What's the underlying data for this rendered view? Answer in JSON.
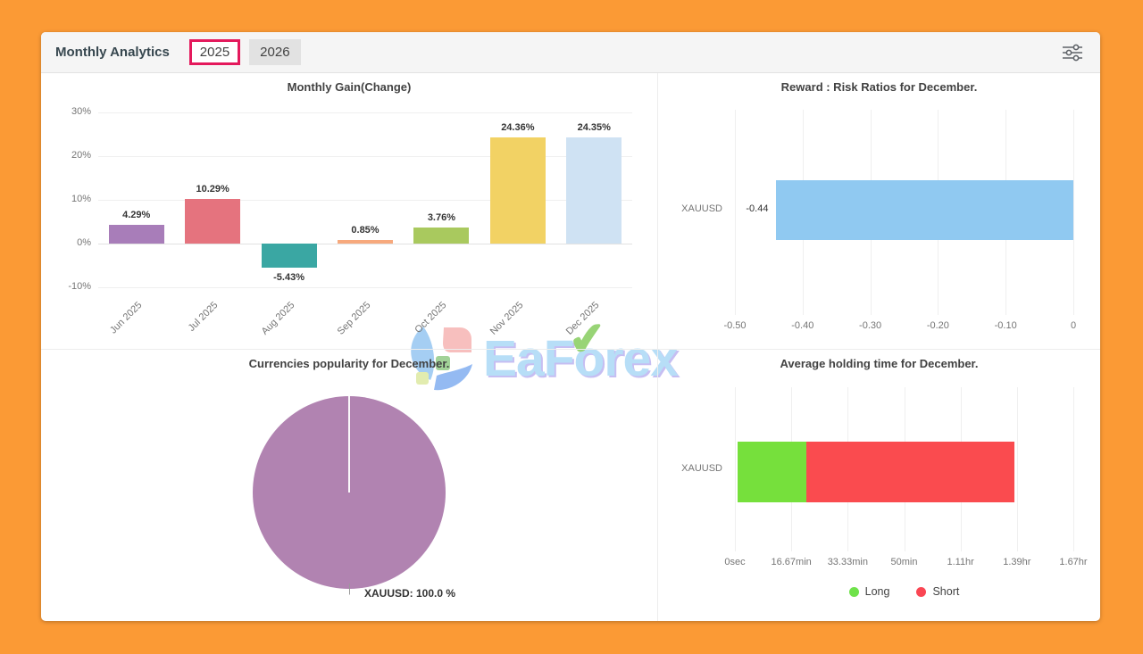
{
  "header": {
    "title": "Monthly Analytics",
    "tabs": [
      {
        "label": "2025",
        "selected": true
      },
      {
        "label": "2026",
        "selected": false
      }
    ]
  },
  "watermark": {
    "brand_left": "EaF",
    "brand_o": "o",
    "brand_right": "rex",
    "check_glyph": "✔"
  },
  "colors": {
    "background": "#fb9a35",
    "card": "#ffffff",
    "header_bg": "#f5f5f5",
    "tab_active_border": "#e4195c",
    "tab_inactive_bg": "#e2e2e2",
    "grid_line": "#efefef",
    "axis_text": "#757575"
  },
  "chart_data": [
    {
      "type": "bar",
      "title": "Monthly Gain(Change)",
      "categories": [
        "Jun 2025",
        "Jul 2025",
        "Aug 2025",
        "Sep 2025",
        "Oct 2025",
        "Nov 2025",
        "Dec 2025"
      ],
      "values": [
        4.29,
        10.29,
        -5.43,
        0.85,
        3.76,
        24.36,
        24.35
      ],
      "value_labels": [
        "4.29%",
        "10.29%",
        "-5.43%",
        "0.85%",
        "3.76%",
        "24.36%",
        "24.35%"
      ],
      "bar_colors": [
        "#a87db9",
        "#e5737e",
        "#3aa7a3",
        "#f7a97d",
        "#a9c95e",
        "#f2d264",
        "#cfe2f3"
      ],
      "ylim": [
        -10,
        30
      ],
      "yticks": [
        30,
        20,
        10,
        0,
        -10
      ],
      "ytick_labels": [
        "30%",
        "20%",
        "10%",
        "0%",
        "-10%"
      ],
      "grid": true
    },
    {
      "type": "hbar",
      "title": "Reward : Risk Ratios for December.",
      "categories": [
        "XAUUSD"
      ],
      "values": [
        -0.44
      ],
      "value_labels": [
        "-0.44"
      ],
      "bar_color": "#90c9f1",
      "xlim": [
        -0.5,
        0
      ],
      "xticks": [
        -0.5,
        -0.4,
        -0.3,
        -0.2,
        -0.1,
        0
      ],
      "xtick_labels": [
        "-0.50",
        "-0.40",
        "-0.30",
        "-0.20",
        "-0.10",
        "0"
      ],
      "grid": true
    },
    {
      "type": "pie",
      "title": "Currencies popularity for December.",
      "slices": [
        {
          "label": "XAUUSD",
          "value": 100.0,
          "color": "#b183b1"
        }
      ],
      "callout": "XAUUSD: 100.0 %"
    },
    {
      "type": "stacked_hbar",
      "title": "Average holding time for December.",
      "categories": [
        "XAUUSD"
      ],
      "axis_max_minutes": 100,
      "series": [
        {
          "name": "Long",
          "color": "#76e03c",
          "start_min": 0.8,
          "end_min": 21.0
        },
        {
          "name": "Short",
          "color": "#fa4b4f",
          "start_min": 21.0,
          "end_min": 82.5
        }
      ],
      "xtick_labels": [
        "0sec",
        "16.67min",
        "33.33min",
        "50min",
        "1.11hr",
        "1.39hr",
        "1.67hr"
      ],
      "legend": [
        {
          "label": "Long",
          "color": "#6fe24a"
        },
        {
          "label": "Short",
          "color": "#fa4653"
        }
      ],
      "legend_position": "bottom"
    }
  ]
}
